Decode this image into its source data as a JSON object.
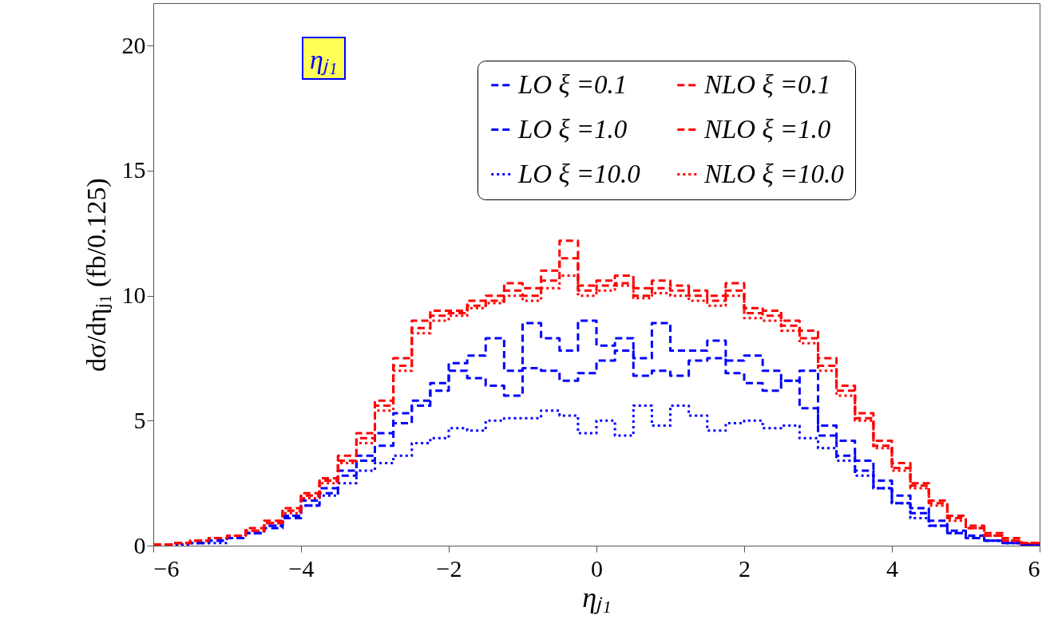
{
  "chart_data": {
    "type": "step",
    "xlabel": "ηⱼ₁",
    "ylabel": "dσ/dηⱼ₁ (fb/0.125)",
    "annotations": [
      "ηⱼ₁"
    ],
    "x": [
      -6,
      -5.75,
      -5.5,
      -5.25,
      -5,
      -4.75,
      -4.5,
      -4.25,
      -4,
      -3.75,
      -3.5,
      -3.25,
      -3,
      -2.75,
      -2.5,
      -2.25,
      -2,
      -1.75,
      -1.5,
      -1.25,
      -1,
      -0.75,
      -0.5,
      -0.25,
      0,
      0.25,
      0.5,
      0.75,
      1,
      1.25,
      1.5,
      1.75,
      2,
      2.25,
      2.5,
      2.75,
      3,
      3.25,
      3.5,
      3.75,
      4,
      4.25,
      4.5,
      4.75,
      5,
      5.25,
      5.5,
      5.75,
      6
    ],
    "xlim": [
      -6,
      6
    ],
    "xticks": [
      -6,
      -4,
      -2,
      0,
      2,
      4,
      6
    ],
    "ylim": [
      0,
      21.7
    ],
    "yticks": [
      0,
      5,
      10,
      15,
      20
    ],
    "legend": "top right",
    "series": [
      {
        "name": "LO ξ =0.1",
        "color": "#0000ff",
        "line_style": "dashed",
        "values": [
          0.05,
          0.1,
          0.1,
          0.2,
          0.3,
          0.5,
          0.8,
          1.2,
          1.8,
          2.3,
          3.0,
          3.6,
          4.5,
          5.3,
          5.8,
          6.5,
          7.3,
          7.6,
          8.3,
          7.0,
          8.9,
          8.3,
          7.8,
          9.0,
          8.0,
          8.3,
          7.5,
          8.9,
          7.8,
          7.8,
          8.2,
          7.4,
          7.6,
          7.0,
          6.6,
          7.0,
          4.8,
          4.2,
          3.4,
          2.6,
          2.0,
          1.5,
          1.0,
          0.6,
          0.4,
          0.2,
          0.1,
          0.05,
          0.05
        ]
      },
      {
        "name": "LO ξ =1.0",
        "color": "#0000ff",
        "line_style": "dashed",
        "values": [
          0.05,
          0.1,
          0.1,
          0.2,
          0.3,
          0.5,
          0.7,
          1.1,
          1.6,
          2.1,
          2.8,
          3.4,
          4.0,
          4.9,
          5.6,
          6.2,
          7.0,
          6.7,
          6.4,
          6.0,
          7.1,
          7.0,
          6.6,
          6.9,
          7.4,
          7.8,
          6.8,
          7.0,
          6.8,
          7.4,
          7.5,
          6.9,
          6.5,
          6.2,
          6.6,
          5.5,
          4.4,
          3.6,
          3.0,
          2.3,
          1.7,
          1.3,
          0.8,
          0.5,
          0.3,
          0.2,
          0.1,
          0.05,
          0.05
        ]
      },
      {
        "name": "LO ξ =10.0",
        "color": "#0000ff",
        "line_style": "dotted",
        "values": [
          0.05,
          0.05,
          0.1,
          0.1,
          0.3,
          0.5,
          0.8,
          1.2,
          1.6,
          2.0,
          2.5,
          3.0,
          3.3,
          3.6,
          4.1,
          4.3,
          4.7,
          4.6,
          5.0,
          5.1,
          5.1,
          5.4,
          5.2,
          4.5,
          5.0,
          4.4,
          5.6,
          4.8,
          5.6,
          5.2,
          4.6,
          4.9,
          5.0,
          4.7,
          4.8,
          4.3,
          3.9,
          3.4,
          2.8,
          2.3,
          1.7,
          1.1,
          0.8,
          0.5,
          0.3,
          0.2,
          0.1,
          0.05,
          0.05
        ]
      },
      {
        "name": "NLO ξ =0.1",
        "color": "#ff0000",
        "line_style": "dashed",
        "values": [
          0.05,
          0.1,
          0.2,
          0.3,
          0.4,
          0.7,
          1.0,
          1.5,
          2.1,
          2.7,
          3.6,
          4.5,
          5.8,
          7.5,
          9.0,
          9.4,
          9.4,
          9.8,
          10.0,
          10.5,
          10.3,
          11.0,
          12.2,
          10.4,
          10.6,
          10.8,
          10.3,
          10.6,
          10.4,
          10.2,
          10.0,
          10.5,
          9.5,
          9.4,
          9.0,
          8.6,
          7.5,
          6.4,
          5.3,
          4.2,
          3.3,
          2.5,
          1.8,
          1.2,
          0.8,
          0.5,
          0.3,
          0.1,
          0.1
        ]
      },
      {
        "name": "NLO ξ =1.0",
        "color": "#ff0000",
        "line_style": "dashed",
        "values": [
          0.05,
          0.1,
          0.2,
          0.3,
          0.4,
          0.6,
          0.9,
          1.4,
          2.0,
          2.6,
          3.4,
          4.3,
          5.6,
          7.2,
          8.7,
          9.2,
          9.3,
          9.6,
          9.8,
          10.2,
          10.0,
          10.6,
          11.5,
          10.2,
          10.4,
          10.5,
          10.0,
          10.3,
          10.2,
          10.0,
          9.8,
          10.2,
          9.3,
          9.2,
          8.8,
          8.3,
          7.2,
          6.2,
          5.1,
          4.0,
          3.1,
          2.4,
          1.7,
          1.1,
          0.7,
          0.4,
          0.2,
          0.1,
          0.1
        ]
      },
      {
        "name": "NLO ξ =10.0",
        "color": "#ff0000",
        "line_style": "dotted",
        "values": [
          0.05,
          0.1,
          0.2,
          0.3,
          0.4,
          0.6,
          0.9,
          1.3,
          1.9,
          2.5,
          3.3,
          4.1,
          5.4,
          7.0,
          8.5,
          9.0,
          9.2,
          9.5,
          9.7,
          10.0,
          9.8,
          10.3,
          10.8,
          10.0,
          10.2,
          10.4,
          9.9,
          10.1,
          10.0,
          9.8,
          9.6,
          10.0,
          9.1,
          9.0,
          8.6,
          8.1,
          7.0,
          6.0,
          5.0,
          3.9,
          3.0,
          2.3,
          1.6,
          1.0,
          0.7,
          0.4,
          0.2,
          0.1,
          0.1
        ]
      }
    ]
  }
}
